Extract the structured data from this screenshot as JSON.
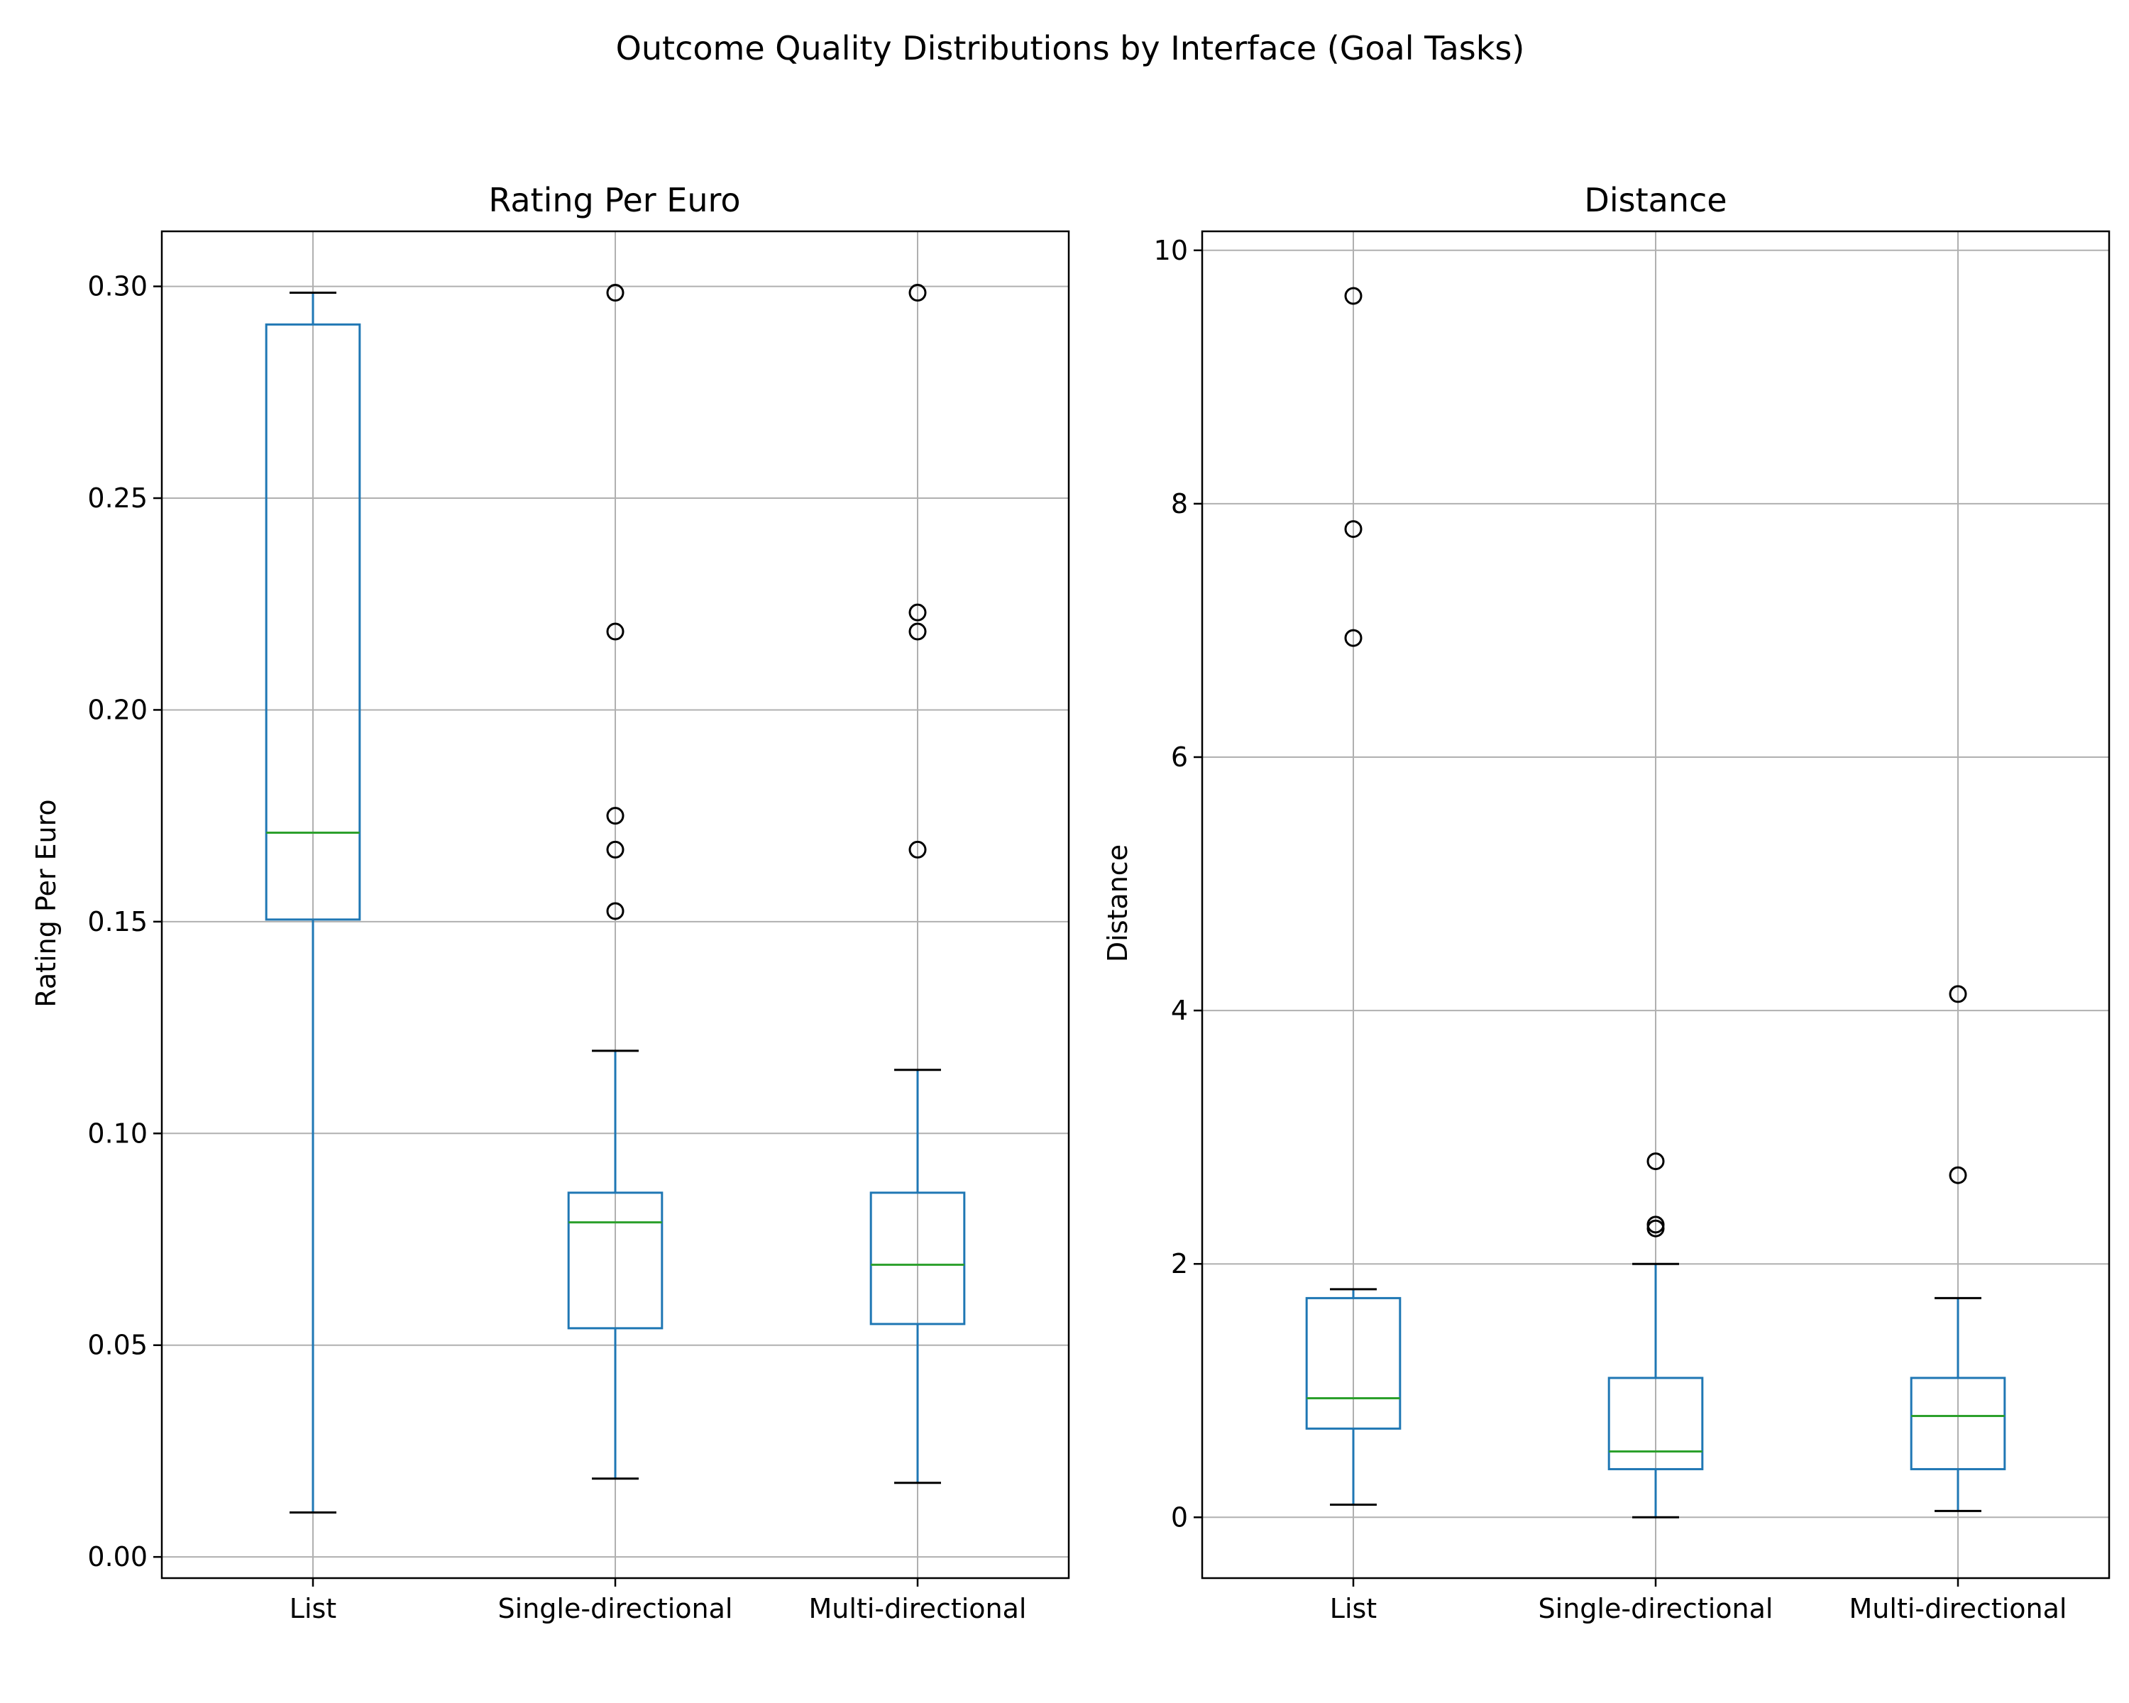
{
  "figure": {
    "suptitle": "Outcome Quality Distributions by Interface (Goal Tasks)"
  },
  "colors": {
    "box": "#1f77b4",
    "median": "#2ca02c",
    "whisker": "#000000",
    "grid": "#b0b0b0",
    "outlier": "#000000"
  },
  "chart_data": [
    {
      "type": "box",
      "title": "Rating Per Euro",
      "xlabel": "",
      "ylabel": "Rating Per Euro",
      "categories": [
        "List",
        "Single-directional",
        "Multi-directional"
      ],
      "ylim": [
        -0.005,
        0.313
      ],
      "yticks": [
        0.0,
        0.05,
        0.1,
        0.15,
        0.2,
        0.25,
        0.3
      ],
      "ytick_labels": [
        "0.00",
        "0.05",
        "0.10",
        "0.15",
        "0.20",
        "0.25",
        "0.30"
      ],
      "grid": true,
      "boxes": [
        {
          "whislo": 0.0105,
          "q1": 0.1505,
          "med": 0.171,
          "q3": 0.291,
          "whishi": 0.2985,
          "fliers": []
        },
        {
          "whislo": 0.0185,
          "q1": 0.054,
          "med": 0.079,
          "q3": 0.086,
          "whishi": 0.1195,
          "fliers": [
            0.2985,
            0.2185,
            0.175,
            0.167,
            0.1525
          ]
        },
        {
          "whislo": 0.0175,
          "q1": 0.055,
          "med": 0.069,
          "q3": 0.086,
          "whishi": 0.115,
          "fliers": [
            0.2985,
            0.223,
            0.2185,
            0.167
          ]
        }
      ]
    },
    {
      "type": "box",
      "title": "Distance",
      "xlabel": "",
      "ylabel": "Distance",
      "categories": [
        "List",
        "Single-directional",
        "Multi-directional"
      ],
      "ylim": [
        -0.48,
        10.15
      ],
      "yticks": [
        0,
        2,
        4,
        6,
        8,
        10
      ],
      "ytick_labels": [
        "0",
        "2",
        "4",
        "6",
        "8",
        "10"
      ],
      "grid": true,
      "boxes": [
        {
          "whislo": 0.1,
          "q1": 0.7,
          "med": 0.94,
          "q3": 1.73,
          "whishi": 1.8,
          "fliers": [
            9.64,
            7.8,
            6.94
          ]
        },
        {
          "whislo": 0.0,
          "q1": 0.38,
          "med": 0.52,
          "q3": 1.1,
          "whishi": 2.0,
          "fliers": [
            2.81,
            2.31,
            2.28
          ]
        },
        {
          "whislo": 0.05,
          "q1": 0.38,
          "med": 0.8,
          "q3": 1.1,
          "whishi": 1.73,
          "fliers": [
            4.13,
            2.7
          ]
        }
      ]
    }
  ]
}
